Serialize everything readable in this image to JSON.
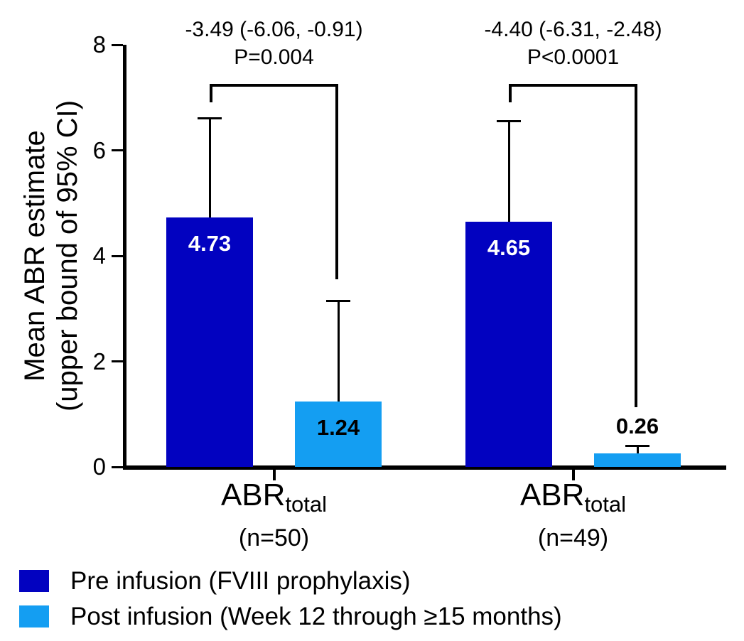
{
  "colors": {
    "pre_bar": "#0202c0",
    "post_bar": "#149ef2",
    "axis": "#000000",
    "background": "#ffffff",
    "pre_value_label": "#ffffff",
    "post_value_label": "#000000"
  },
  "chart_data": {
    "type": "bar",
    "title": "",
    "ylabel_line1": "Mean ABR estimate",
    "ylabel_line2": "(upper bound of 95% CI)",
    "ylim": [
      0,
      8
    ],
    "yticks": [
      0,
      2,
      4,
      6,
      8
    ],
    "grid": false,
    "legend_position": "bottom-left",
    "series_names": [
      "Pre infusion (FVIII prophylaxis)",
      "Post infusion (Week 12 through ≥15 months)"
    ],
    "groups": [
      {
        "label_main": "ABR",
        "label_sub": "total",
        "label_n": "(n=50)",
        "bars": [
          {
            "series": "Pre infusion (FVIII prophylaxis)",
            "value": 4.73,
            "upper_ci": 6.6
          },
          {
            "series": "Post infusion (Week 12 through ≥15 months)",
            "value": 1.24,
            "upper_ci": 3.15
          }
        ],
        "comparison": {
          "line1": "-3.49 (-6.06, -0.91)",
          "line2": "P=0.004",
          "bracket_drop_to_value": 3.55
        }
      },
      {
        "label_main": "ABR",
        "label_sub": "total",
        "label_n": "(n=49)",
        "bars": [
          {
            "series": "Pre infusion (FVIII prophylaxis)",
            "value": 4.65,
            "upper_ci": 6.55
          },
          {
            "series": "Post infusion (Week 12 through ≥15 months)",
            "value": 0.26,
            "upper_ci": 0.4
          }
        ],
        "comparison": {
          "line1": "-4.40 (-6.31, -2.48)",
          "line2": "P<0.0001",
          "bracket_drop_to_value": 1.13
        }
      }
    ],
    "legend": [
      {
        "label": "Pre infusion (FVIII prophylaxis)",
        "color_key": "pre_bar"
      },
      {
        "label": "Post infusion (Week 12 through ≥15 months)",
        "color_key": "post_bar"
      }
    ]
  }
}
